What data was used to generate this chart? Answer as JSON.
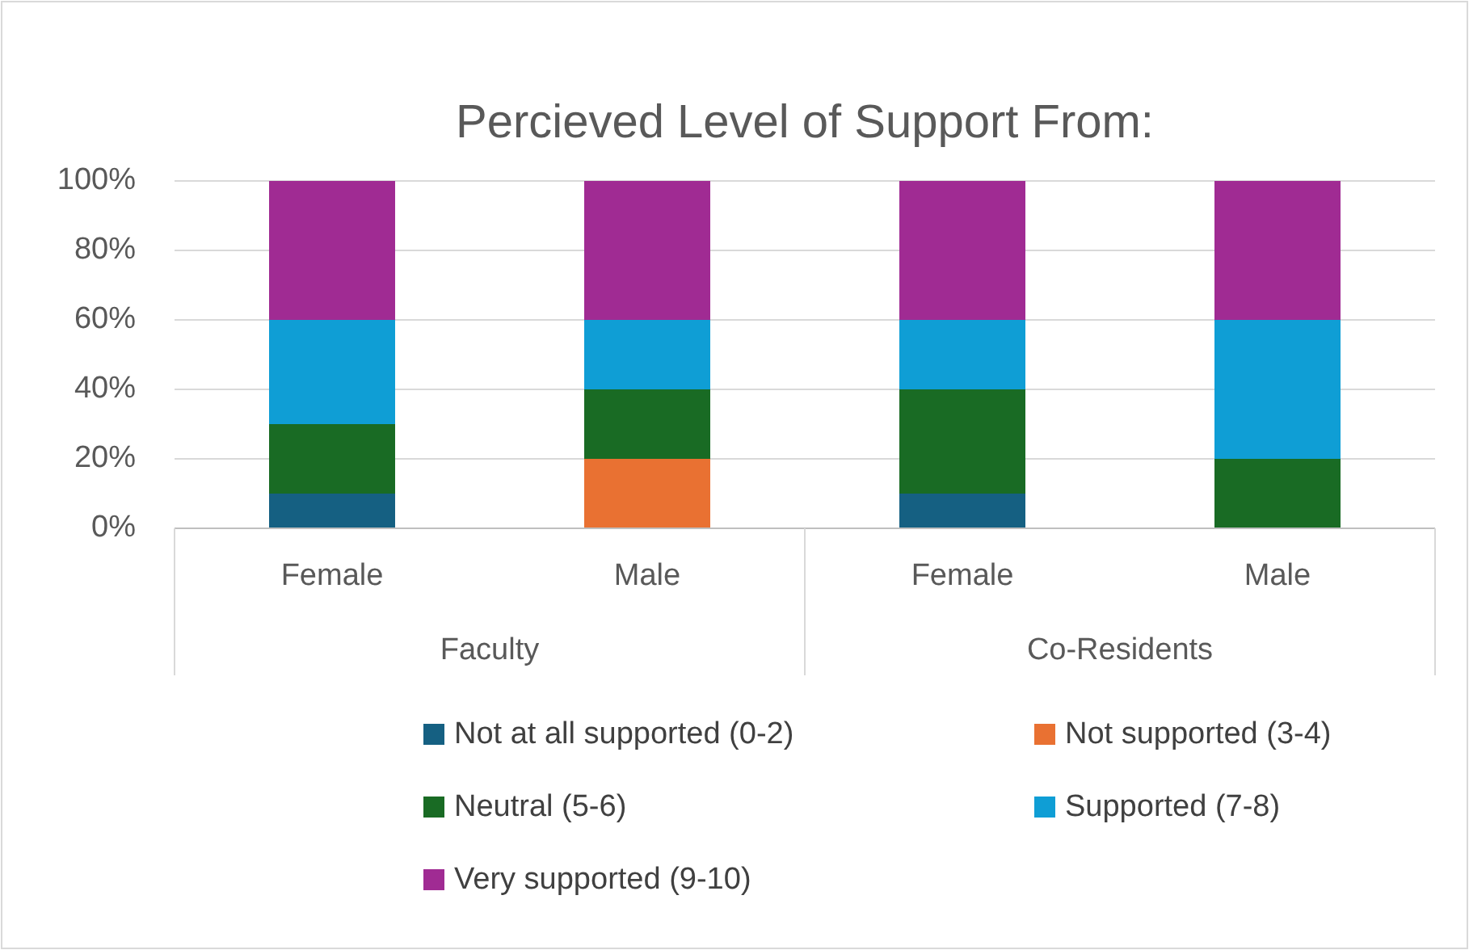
{
  "chart_data": {
    "type": "bar",
    "title": "Percieved Level of Support From:",
    "stacked": true,
    "categories": [
      "Female",
      "Male",
      "Female",
      "Male"
    ],
    "annotations": [
      "Faculty",
      "Co-Residents"
    ],
    "series": [
      {
        "name": "Not at all supported (0-2)",
        "color": "#156082",
        "values": [
          10,
          0,
          10,
          0
        ]
      },
      {
        "name": "Not supported (3-4)",
        "color": "#e97132",
        "values": [
          0,
          20,
          0,
          0
        ]
      },
      {
        "name": "Neutral (5-6)",
        "color": "#196b24",
        "values": [
          20,
          20,
          30,
          20
        ]
      },
      {
        "name": "Supported (7-8)",
        "color": "#0f9ed5",
        "values": [
          30,
          20,
          20,
          40
        ]
      },
      {
        "name": "Very supported (9-10)",
        "color": "#a02b93",
        "values": [
          40,
          40,
          40,
          40
        ]
      }
    ],
    "ylim": [
      0,
      100
    ],
    "yticks": [
      {
        "value": 0,
        "label": "0%"
      },
      {
        "value": 20,
        "label": "20%"
      },
      {
        "value": 40,
        "label": "40%"
      },
      {
        "value": 60,
        "label": "60%"
      },
      {
        "value": 80,
        "label": "80%"
      },
      {
        "value": 100,
        "label": "100%"
      }
    ],
    "grid": "y",
    "legend": "bottom"
  }
}
